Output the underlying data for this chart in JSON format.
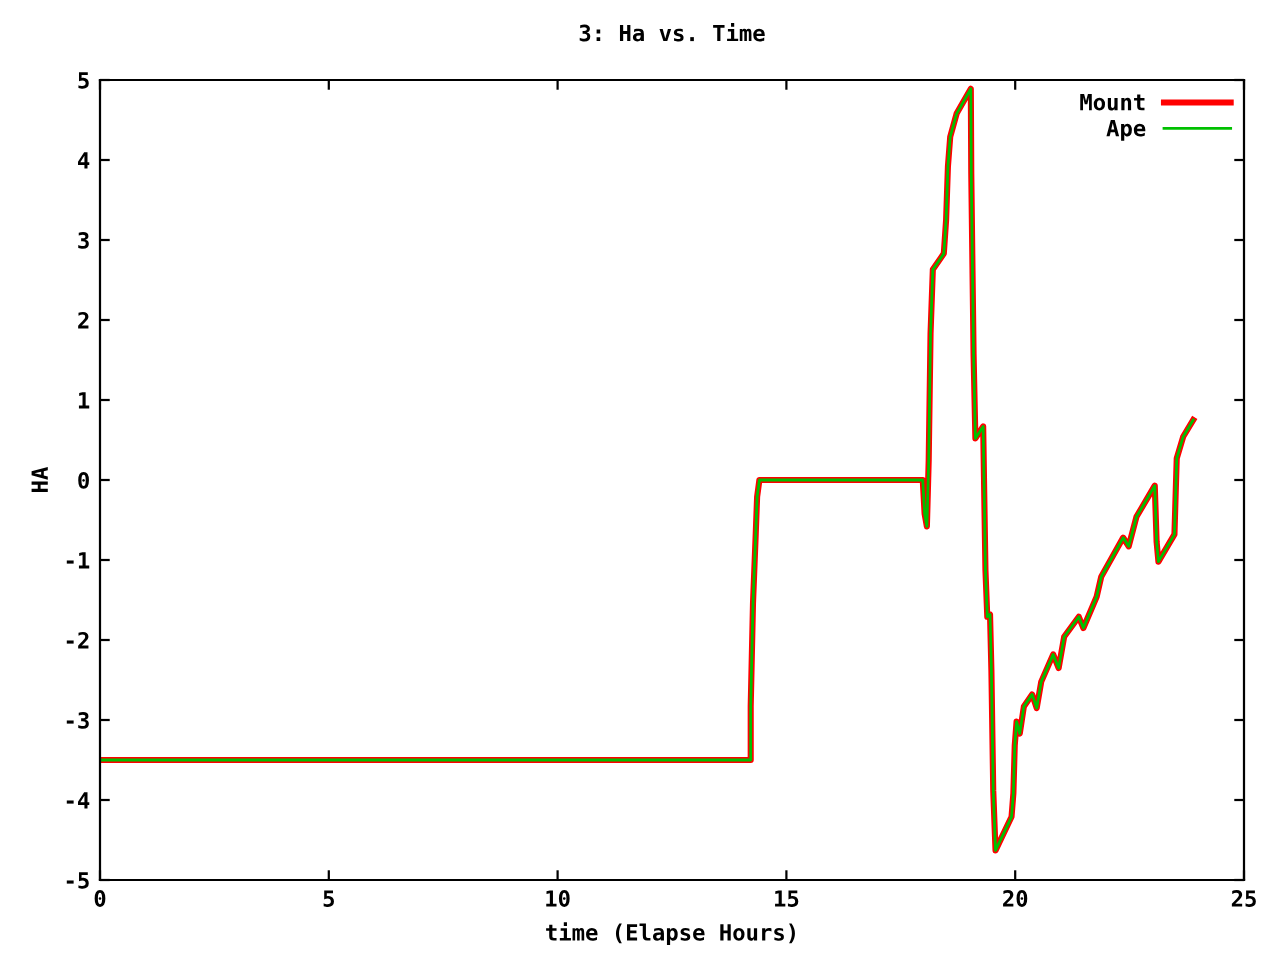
{
  "chart_data": {
    "type": "line",
    "title": "3: Ha vs. Time",
    "xlabel": "time (Elapse Hours)",
    "ylabel": "HA",
    "xlim": [
      0,
      25
    ],
    "ylim": [
      -5,
      5
    ],
    "xticks": [
      0,
      5,
      10,
      15,
      20,
      25
    ],
    "yticks": [
      -5,
      -4,
      -3,
      -2,
      -1,
      0,
      1,
      2,
      3,
      4,
      5
    ],
    "grid": false,
    "legend": "top right",
    "marker": "none",
    "line_style": "solid",
    "x": [
      0,
      14.22,
      14.22,
      14.27,
      14.33,
      14.36,
      14.41,
      17.98,
      18.02,
      18.07,
      18.11,
      18.15,
      18.2,
      18.44,
      18.49,
      18.53,
      18.58,
      18.72,
      19.03,
      19.04,
      19.09,
      19.13,
      19.3,
      19.35,
      19.39,
      19.45,
      19.48,
      19.52,
      19.57,
      19.92,
      19.96,
      19.99,
      20.03,
      20.1,
      20.19,
      20.37,
      20.47,
      20.57,
      20.83,
      20.95,
      21.07,
      21.39,
      21.49,
      21.78,
      21.88,
      22.36,
      22.48,
      22.65,
      23.05,
      23.09,
      23.13,
      23.48,
      23.53,
      23.67,
      23.89
    ],
    "series": [
      {
        "name": "Mount",
        "color": "#ff0000",
        "values": [
          -3.5,
          -3.5,
          -2.83,
          -1.54,
          -0.67,
          -0.21,
          0,
          0,
          -0.42,
          -0.58,
          0.25,
          1.83,
          2.63,
          2.83,
          3.25,
          3.92,
          4.29,
          4.58,
          4.89,
          3.83,
          1.58,
          0.52,
          0.67,
          -1.13,
          -1.71,
          -1.68,
          -2.38,
          -3.88,
          -4.63,
          -4.21,
          -3.92,
          -3.32,
          -3.02,
          -3.17,
          -2.83,
          -2.68,
          -2.85,
          -2.52,
          -2.18,
          -2.35,
          -1.96,
          -1.71,
          -1.85,
          -1.46,
          -1.21,
          -0.72,
          -0.83,
          -0.46,
          -0.07,
          -0.77,
          -1.02,
          -0.68,
          0.27,
          0.54,
          0.75
        ]
      },
      {
        "name": "Ape",
        "color": "#00c000",
        "values": [
          -3.5,
          -3.5,
          -2.83,
          -1.54,
          -0.67,
          -0.21,
          0,
          0,
          -0.42,
          -0.58,
          0.25,
          1.83,
          2.63,
          2.83,
          3.25,
          3.92,
          4.29,
          4.58,
          4.89,
          3.83,
          1.58,
          0.52,
          0.67,
          -1.13,
          -1.71,
          -1.68,
          -2.38,
          -3.88,
          -4.63,
          -4.21,
          -3.92,
          -3.32,
          -3.02,
          -3.17,
          -2.83,
          -2.68,
          -2.85,
          -2.52,
          -2.18,
          -2.35,
          -1.96,
          -1.71,
          -1.85,
          -1.46,
          -1.21,
          -0.72,
          -0.83,
          -0.46,
          -0.07,
          -0.77,
          -1.02,
          -0.68,
          0.27,
          0.54,
          0.75
        ]
      }
    ]
  }
}
